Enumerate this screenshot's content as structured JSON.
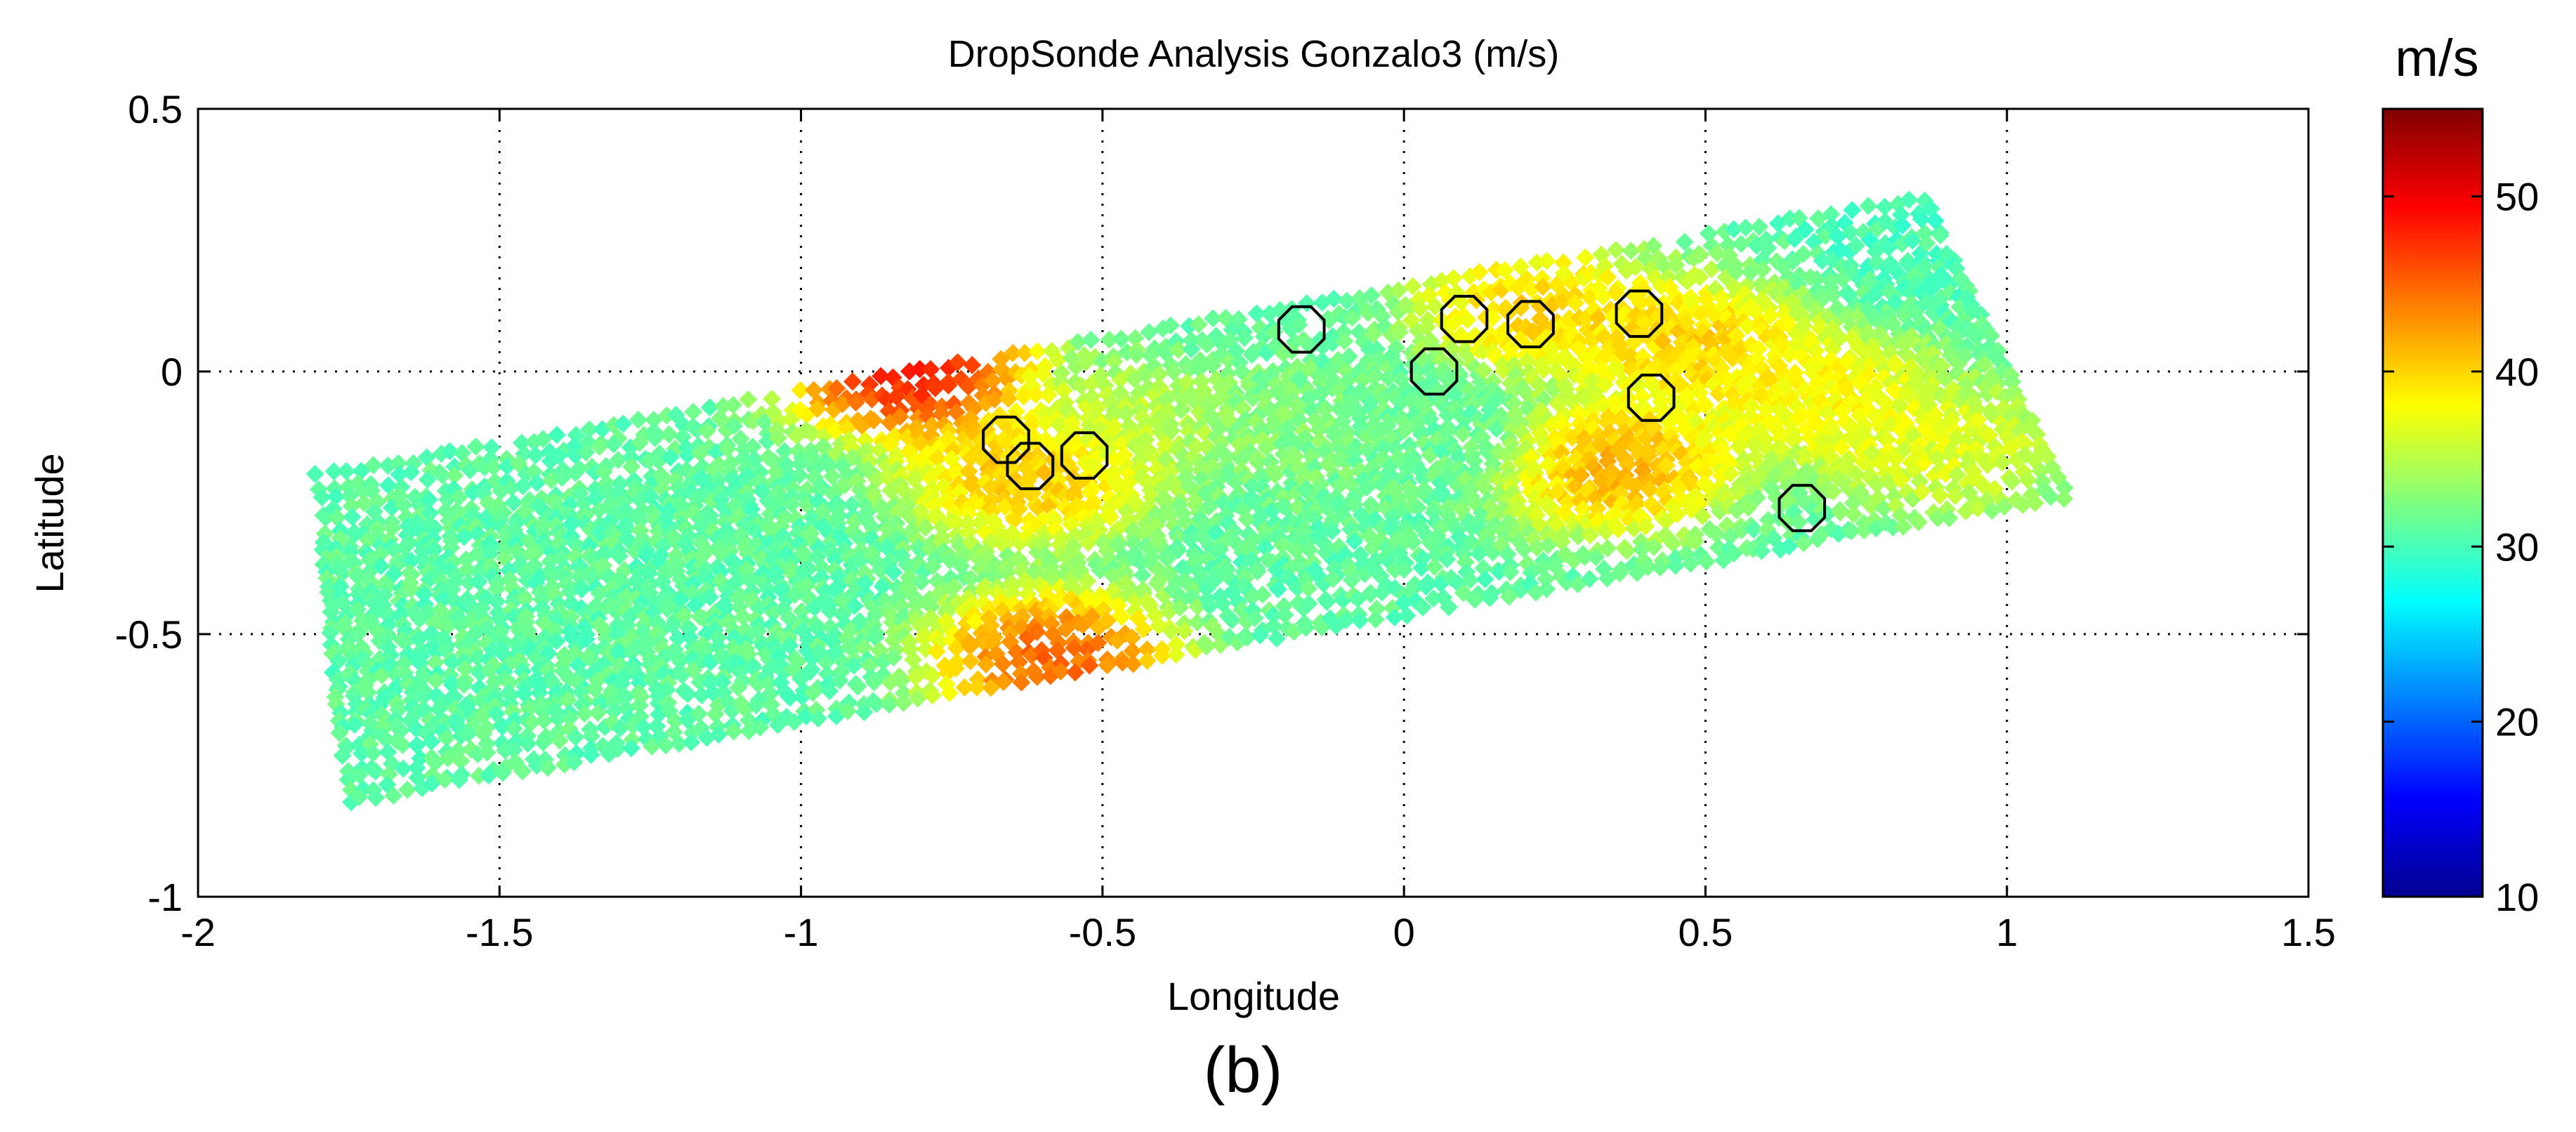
{
  "chart_data": {
    "type": "scatter",
    "title": "DropSonde Analysis Gonzalo3 (m/s)",
    "xlabel": "Longitude",
    "ylabel": "Latitude",
    "xlim": [
      -2,
      1.5
    ],
    "ylim": [
      -1,
      0.5
    ],
    "x_ticks": [
      -2,
      -1.5,
      -1,
      -0.5,
      0,
      0.5,
      1,
      1.5
    ],
    "x_tick_labels": [
      "-2",
      "-1.5",
      "-1",
      "-0.5",
      "0",
      "0.5",
      "1",
      "1.5"
    ],
    "y_ticks": [
      -1,
      -0.5,
      0,
      0.5
    ],
    "y_tick_labels": [
      "-1",
      "-0.5",
      "0",
      "0.5"
    ],
    "grid": true,
    "panel_label": "(b)",
    "colorbar": {
      "label": "m/s",
      "range": [
        10,
        55
      ],
      "ticks": [
        10,
        20,
        30,
        40,
        50
      ],
      "tick_labels": [
        "10",
        "20",
        "30",
        "40",
        "50"
      ],
      "colormap": "jet"
    },
    "swath": {
      "corners": [
        [
          -1.8,
          -0.2
        ],
        [
          0.86,
          0.33
        ],
        [
          1.1,
          -0.25
        ],
        [
          -1.75,
          -0.83
        ]
      ],
      "background_speed": 31
    },
    "speed_features": [
      {
        "lon": -0.82,
        "lat": 0.0,
        "speed": 52
      },
      {
        "lon": -0.58,
        "lat": -0.55,
        "speed": 48
      },
      {
        "lon": -0.62,
        "lat": -0.2,
        "speed": 43
      },
      {
        "lon": -0.45,
        "lat": -0.1,
        "speed": 36
      },
      {
        "lon": 0.22,
        "lat": 0.12,
        "speed": 42
      },
      {
        "lon": 0.35,
        "lat": -0.18,
        "speed": 44
      },
      {
        "lon": 0.48,
        "lat": 0.05,
        "speed": 42
      },
      {
        "lon": 0.7,
        "lat": -0.05,
        "speed": 40
      },
      {
        "lon": 0.9,
        "lat": -0.15,
        "speed": 38
      },
      {
        "lon": 0.05,
        "lat": -0.12,
        "speed": 31
      },
      {
        "lon": -0.15,
        "lat": -0.12,
        "speed": 33
      },
      {
        "lon": 0.84,
        "lat": 0.25,
        "speed": 30
      }
    ],
    "dropsonde_locations": [
      {
        "lon": -0.66,
        "lat": -0.13
      },
      {
        "lon": -0.62,
        "lat": -0.18
      },
      {
        "lon": -0.53,
        "lat": -0.16
      },
      {
        "lon": -0.17,
        "lat": 0.08
      },
      {
        "lon": 0.05,
        "lat": 0.0
      },
      {
        "lon": 0.1,
        "lat": 0.1
      },
      {
        "lon": 0.21,
        "lat": 0.09
      },
      {
        "lon": 0.39,
        "lat": 0.11
      },
      {
        "lon": 0.41,
        "lat": -0.05
      },
      {
        "lon": 0.66,
        "lat": -0.26
      }
    ]
  }
}
